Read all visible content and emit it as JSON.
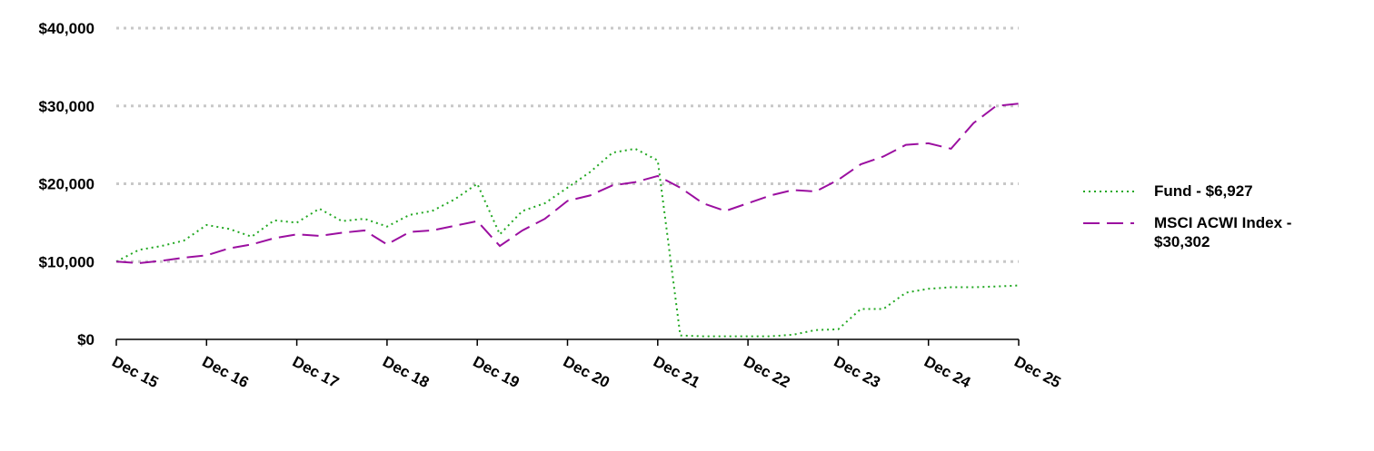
{
  "chart_data": {
    "type": "line",
    "categories": [
      "Dec 15",
      null,
      null,
      null,
      "Dec 16",
      null,
      null,
      null,
      "Dec 17",
      null,
      null,
      null,
      "Dec 18",
      null,
      null,
      null,
      "Dec 19",
      null,
      null,
      null,
      "Dec 20",
      null,
      null,
      null,
      "Dec 21",
      null,
      null,
      null,
      "Dec 22",
      null,
      null,
      null,
      "Dec 23",
      null,
      null,
      null,
      "Dec 24",
      null,
      null,
      null,
      "Dec 25"
    ],
    "series": [
      {
        "name": "Fund - $6,927",
        "color": "#22a822",
        "values": [
          10000,
          11500,
          12000,
          12700,
          14700,
          14200,
          13200,
          15300,
          15000,
          16800,
          15200,
          15500,
          14500,
          16000,
          16500,
          18000,
          20000,
          13500,
          16500,
          17500,
          19500,
          21500,
          24000,
          24500,
          23000,
          500,
          400,
          400,
          400,
          400,
          600,
          1200,
          1300,
          3900,
          3900,
          6000,
          6500,
          6700,
          6700,
          6800,
          6927
        ]
      },
      {
        "name": "MSCI ACWI Index - $30,302",
        "color": "#9b0fa0",
        "values": [
          10000,
          9800,
          10100,
          10500,
          10800,
          11700,
          12200,
          13000,
          13500,
          13300,
          13700,
          14000,
          12200,
          13800,
          14000,
          14600,
          15200,
          12000,
          14000,
          15500,
          17800,
          18500,
          19800,
          20200,
          21000,
          19500,
          17500,
          16500,
          17500,
          18500,
          19200,
          19000,
          20500,
          22500,
          23500,
          25000,
          25200,
          24500,
          27800,
          30000,
          30302
        ]
      }
    ],
    "ylim": [
      0,
      40000
    ],
    "yticks": [
      {
        "value": 0,
        "label": "$0"
      },
      {
        "value": 10000,
        "label": "$10,000"
      },
      {
        "value": 20000,
        "label": "$20,000"
      },
      {
        "value": 30000,
        "label": "$30,000"
      },
      {
        "value": 40000,
        "label": "$40,000"
      }
    ],
    "grid": true
  }
}
